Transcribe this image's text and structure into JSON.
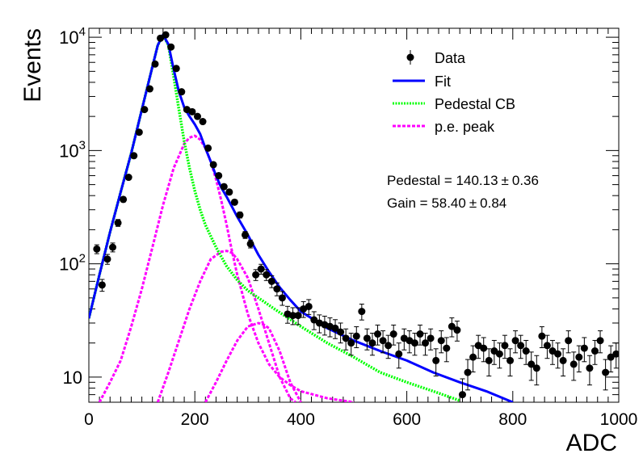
{
  "chart_data": {
    "type": "scatter",
    "title": "",
    "xlabel": "ADC",
    "ylabel": "Events",
    "xlim": [
      0,
      1000
    ],
    "ylim": [
      6,
      12000
    ],
    "yscale": "log",
    "x_ticks": [
      0,
      200,
      400,
      600,
      800,
      1000
    ],
    "y_ticks": [
      {
        "value": 10,
        "base": "10",
        "exp": ""
      },
      {
        "value": 100,
        "base": "10",
        "exp": "2"
      },
      {
        "value": 1000,
        "base": "10",
        "exp": "3"
      },
      {
        "value": 10000,
        "base": "10",
        "exp": "4"
      }
    ],
    "grid": false,
    "legend_position": "top-right",
    "legend": [
      {
        "label": "Data",
        "style": "marker",
        "color": "#000000"
      },
      {
        "label": "Fit",
        "style": "solid",
        "color": "#0000ff"
      },
      {
        "label": "Pedestal CB",
        "style": "dotted",
        "color": "#00ff00"
      },
      {
        "label": "p.e. peak",
        "style": "dashed",
        "color": "#ff00ff"
      }
    ],
    "annotations": [
      {
        "label": "Pedestal = 140.13",
        "pm": "±",
        "value": "0.36"
      },
      {
        "label": "Gain = 58.40",
        "pm": "±",
        "value": "0.84"
      }
    ],
    "data": {
      "name": "Data",
      "x": [
        15,
        25,
        35,
        45,
        55,
        65,
        75,
        85,
        95,
        105,
        115,
        125,
        135,
        145,
        155,
        165,
        175,
        185,
        195,
        205,
        215,
        225,
        235,
        245,
        255,
        265,
        275,
        285,
        295,
        305,
        315,
        325,
        335,
        345,
        355,
        365,
        375,
        385,
        395,
        405,
        415,
        425,
        435,
        445,
        455,
        465,
        475,
        485,
        495,
        505,
        515,
        525,
        535,
        545,
        555,
        565,
        575,
        585,
        595,
        605,
        615,
        625,
        635,
        645,
        655,
        665,
        675,
        685,
        695,
        705,
        715,
        725,
        735,
        745,
        755,
        765,
        775,
        785,
        795,
        805,
        815,
        825,
        835,
        845,
        855,
        865,
        875,
        885,
        895,
        905,
        915,
        925,
        935,
        945,
        955,
        965,
        975,
        985,
        995
      ],
      "y": [
        135,
        65,
        110,
        140,
        230,
        370,
        580,
        900,
        1450,
        2300,
        3500,
        5800,
        9800,
        10500,
        8200,
        5300,
        3300,
        2300,
        2200,
        2000,
        1800,
        1050,
        750,
        600,
        480,
        430,
        350,
        270,
        180,
        150,
        80,
        90,
        80,
        70,
        60,
        50,
        36,
        35,
        35,
        40,
        42,
        32,
        30,
        29,
        28,
        27,
        25,
        22,
        20,
        23,
        38,
        22,
        20,
        24,
        21,
        19,
        24,
        16,
        22,
        21,
        20,
        24,
        20,
        22,
        14,
        21,
        18,
        28,
        26,
        7,
        11,
        15,
        19,
        18,
        14,
        17,
        16,
        19,
        14,
        21,
        19,
        17,
        13,
        12,
        23,
        19,
        17,
        16,
        14,
        21,
        13,
        15,
        18,
        12,
        17,
        21,
        11,
        15,
        16
      ],
      "yerr_fraction": [
        0.09,
        0.12,
        0.1,
        0.09,
        0.07,
        0.05,
        0.04,
        0.03,
        0.03,
        0.02,
        0.02,
        0.01,
        0.01,
        0.01,
        0.01,
        0.01,
        0.02,
        0.02,
        0.02,
        0.02,
        0.02,
        0.03,
        0.04,
        0.04,
        0.05,
        0.05,
        0.05,
        0.06,
        0.07,
        0.08,
        0.11,
        0.1,
        0.11,
        0.12,
        0.13,
        0.14,
        0.17,
        0.17,
        0.17,
        0.16,
        0.15,
        0.18,
        0.18,
        0.19,
        0.19,
        0.19,
        0.2,
        0.21,
        0.22,
        0.21,
        0.16,
        0.21,
        0.22,
        0.2,
        0.22,
        0.23,
        0.2,
        0.25,
        0.21,
        0.22,
        0.22,
        0.2,
        0.22,
        0.21,
        0.27,
        0.22,
        0.24,
        0.19,
        0.2,
        0.38,
        0.3,
        0.26,
        0.23,
        0.24,
        0.27,
        0.24,
        0.25,
        0.23,
        0.27,
        0.22,
        0.23,
        0.24,
        0.28,
        0.29,
        0.21,
        0.23,
        0.24,
        0.25,
        0.27,
        0.22,
        0.28,
        0.26,
        0.24,
        0.29,
        0.24,
        0.22,
        0.3,
        0.26,
        0.25
      ]
    },
    "fit": {
      "name": "Fit",
      "x": [
        0,
        20,
        40,
        60,
        80,
        100,
        120,
        130,
        140,
        150,
        160,
        170,
        180,
        190,
        200,
        210,
        220,
        230,
        240,
        250,
        260,
        270,
        280,
        300,
        320,
        340,
        360,
        380,
        400,
        450,
        500,
        550,
        600,
        650,
        700,
        750,
        800
      ],
      "y": [
        33,
        80,
        190,
        430,
        950,
        2300,
        5500,
        8500,
        10500,
        8700,
        5200,
        3300,
        2400,
        2000,
        1700,
        1400,
        1050,
        800,
        600,
        470,
        390,
        320,
        260,
        180,
        120,
        85,
        62,
        48,
        38,
        27,
        21,
        17,
        14,
        11,
        9,
        7.5,
        6
      ]
    },
    "pedestal_cb": {
      "name": "Pedestal CB",
      "x": [
        0,
        20,
        40,
        60,
        80,
        100,
        120,
        130,
        140,
        150,
        160,
        170,
        180,
        190,
        200,
        210,
        220,
        240,
        260,
        280,
        300,
        350,
        400,
        450,
        500,
        550,
        600,
        650,
        700
      ],
      "y": [
        33,
        80,
        190,
        430,
        950,
        2300,
        5500,
        8500,
        10500,
        8500,
        4500,
        2300,
        1200,
        700,
        440,
        300,
        220,
        140,
        95,
        72,
        58,
        40,
        28,
        20,
        15,
        11,
        9,
        7.5,
        6.2
      ]
    },
    "pe_peaks": [
      {
        "name": "p.e. peak",
        "x": [
          20,
          40,
          60,
          80,
          100,
          120,
          140,
          160,
          180,
          190,
          200,
          210,
          220,
          230,
          240,
          250,
          260,
          270,
          280,
          300,
          320,
          340,
          360,
          380,
          400,
          450,
          500
        ],
        "y": [
          6,
          9,
          14,
          28,
          60,
          140,
          330,
          700,
          1150,
          1300,
          1350,
          1250,
          1050,
          800,
          560,
          360,
          220,
          130,
          80,
          36,
          20,
          13,
          10,
          8.5,
          7.5,
          6.5,
          6
        ]
      },
      {
        "name": "p.e. peak",
        "x": [
          130,
          150,
          170,
          190,
          210,
          230,
          250,
          260,
          270,
          280,
          300,
          320,
          340,
          360,
          380,
          390
        ],
        "y": [
          6,
          11,
          21,
          40,
          70,
          110,
          128,
          130,
          125,
          110,
          75,
          40,
          20,
          10,
          6.5,
          6
        ]
      },
      {
        "name": "p.e. peak",
        "x": [
          220,
          240,
          260,
          280,
          300,
          320,
          330,
          340,
          360,
          380,
          400
        ],
        "y": [
          6,
          9,
          14,
          21,
          28,
          30,
          29,
          27,
          17,
          9,
          6
        ]
      }
    ]
  },
  "colors": {
    "data": "#000000",
    "fit": "#0000ff",
    "pedestal": "#00ff00",
    "pe_peak": "#ff00ff"
  }
}
